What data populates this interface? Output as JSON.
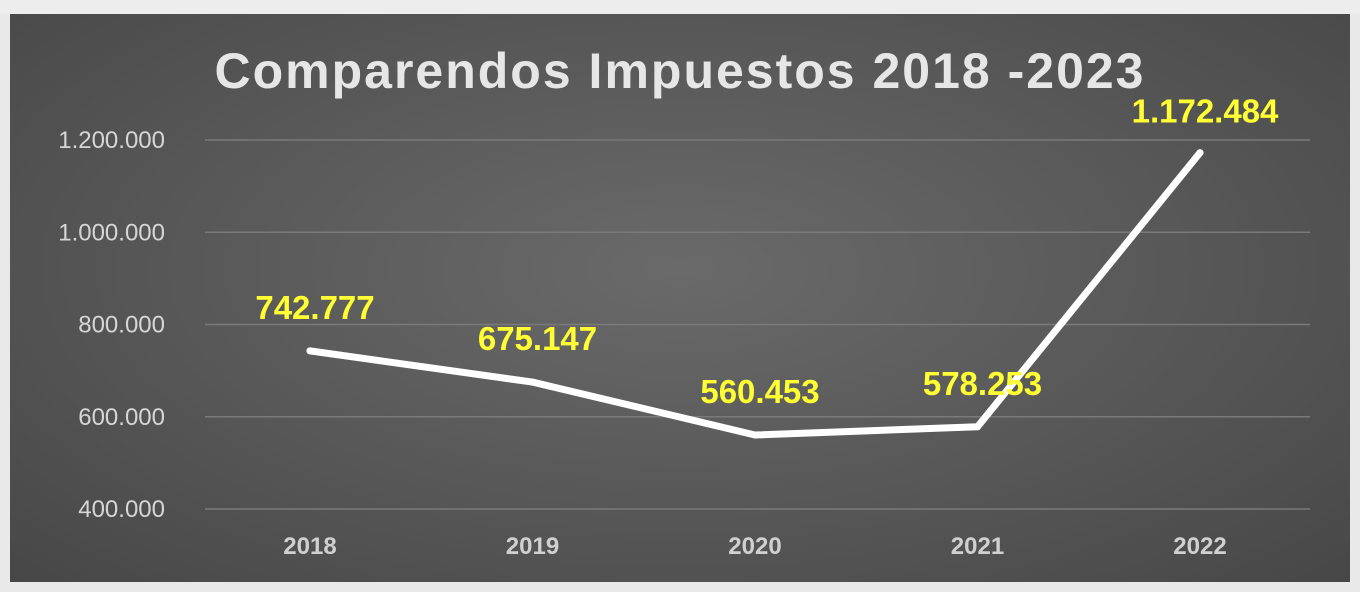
{
  "chart_data": {
    "type": "line",
    "title": "Comparendos Impuestos 2018 -2023",
    "categories": [
      "2018",
      "2019",
      "2020",
      "2021",
      "2022"
    ],
    "values": [
      742777,
      675147,
      560453,
      578253,
      1172484
    ],
    "data_labels": [
      "742.777",
      "675.147",
      "560.453",
      "578.253",
      "1.172.484"
    ],
    "yticks": [
      400000,
      600000,
      800000,
      1000000,
      1200000
    ],
    "ytick_labels": [
      "400.000",
      "600.000",
      "800.000",
      "1.000.000",
      "1.200.000"
    ],
    "ylim": [
      400000,
      1200000
    ],
    "xlabel": "",
    "ylabel": "",
    "grid": true,
    "legend": "none",
    "colors": {
      "line": "#ffffff",
      "data_label": "#ffff33",
      "background": "#5a5a5a",
      "gridline": "#7a7a7a"
    }
  }
}
